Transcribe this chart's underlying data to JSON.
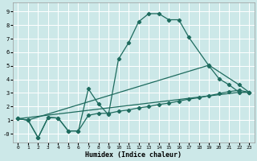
{
  "xlabel": "Humidex (Indice chaleur)",
  "background_color": "#cce8e8",
  "grid_color": "#ffffff",
  "line_color": "#1e6b5e",
  "xlim": [
    -0.5,
    23.5
  ],
  "ylim": [
    -0.65,
    9.65
  ],
  "xticks": [
    0,
    1,
    2,
    3,
    4,
    5,
    6,
    7,
    8,
    9,
    10,
    11,
    12,
    13,
    14,
    15,
    16,
    17,
    18,
    19,
    20,
    21,
    22,
    23
  ],
  "yticks": [
    0,
    1,
    2,
    3,
    4,
    5,
    6,
    7,
    8,
    9
  ],
  "ytick_labels": [
    "-0",
    "1",
    "2",
    "3",
    "4",
    "5",
    "6",
    "7",
    "8",
    "9"
  ],
  "curve1_x": [
    0,
    1,
    2,
    3,
    4,
    5,
    6,
    7,
    8,
    9,
    10,
    11,
    12,
    13,
    14,
    15,
    16,
    17,
    19,
    20,
    21,
    22,
    23
  ],
  "curve1_y": [
    1.1,
    1.0,
    -0.3,
    1.2,
    1.15,
    0.2,
    0.2,
    3.3,
    2.2,
    1.4,
    5.5,
    6.7,
    8.25,
    8.85,
    8.85,
    8.4,
    8.4,
    7.1,
    5.0,
    4.05,
    3.6,
    3.05,
    3.05
  ],
  "curve2_x": [
    0,
    1,
    2,
    3,
    4,
    5,
    6,
    7,
    8,
    9,
    10,
    11,
    12,
    13,
    14,
    15,
    16,
    17,
    18,
    19,
    20,
    21,
    22,
    23
  ],
  "curve2_y": [
    1.1,
    1.0,
    -0.3,
    1.2,
    1.15,
    0.2,
    0.2,
    1.35,
    1.5,
    1.5,
    1.65,
    1.75,
    1.9,
    2.0,
    2.15,
    2.25,
    2.4,
    2.55,
    2.65,
    2.8,
    2.95,
    3.1,
    3.2,
    3.05
  ],
  "curve3_x": [
    0,
    1,
    19,
    22,
    23
  ],
  "curve3_y": [
    1.1,
    1.0,
    5.05,
    3.6,
    3.05
  ],
  "curve4_x": [
    0,
    22,
    23
  ],
  "curve4_y": [
    1.1,
    3.05,
    3.05
  ],
  "marker": "D",
  "markersize": 2.2,
  "linewidth": 0.9
}
